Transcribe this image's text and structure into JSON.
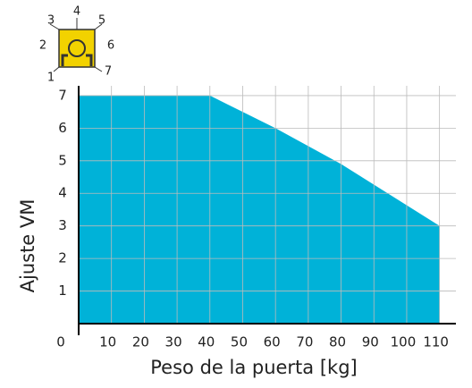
{
  "icon": {
    "labels": [
      "1",
      "2",
      "3",
      "4",
      "5",
      "6",
      "7"
    ]
  },
  "chart_data": {
    "type": "area",
    "x_label": "Peso de la puerta [kg]",
    "y_label": "Ajuste VM",
    "x": [
      0,
      40,
      60,
      80,
      110
    ],
    "values": [
      7,
      7,
      6,
      4.9,
      3
    ],
    "color": "#00b2d8",
    "xlim": [
      0,
      115
    ],
    "xticks": [
      0,
      10,
      20,
      30,
      40,
      50,
      60,
      70,
      80,
      90,
      100,
      110
    ],
    "ylim": [
      0,
      7.3
    ],
    "yticks": [
      1,
      2,
      3,
      4,
      5,
      6,
      7
    ],
    "grid": true
  }
}
